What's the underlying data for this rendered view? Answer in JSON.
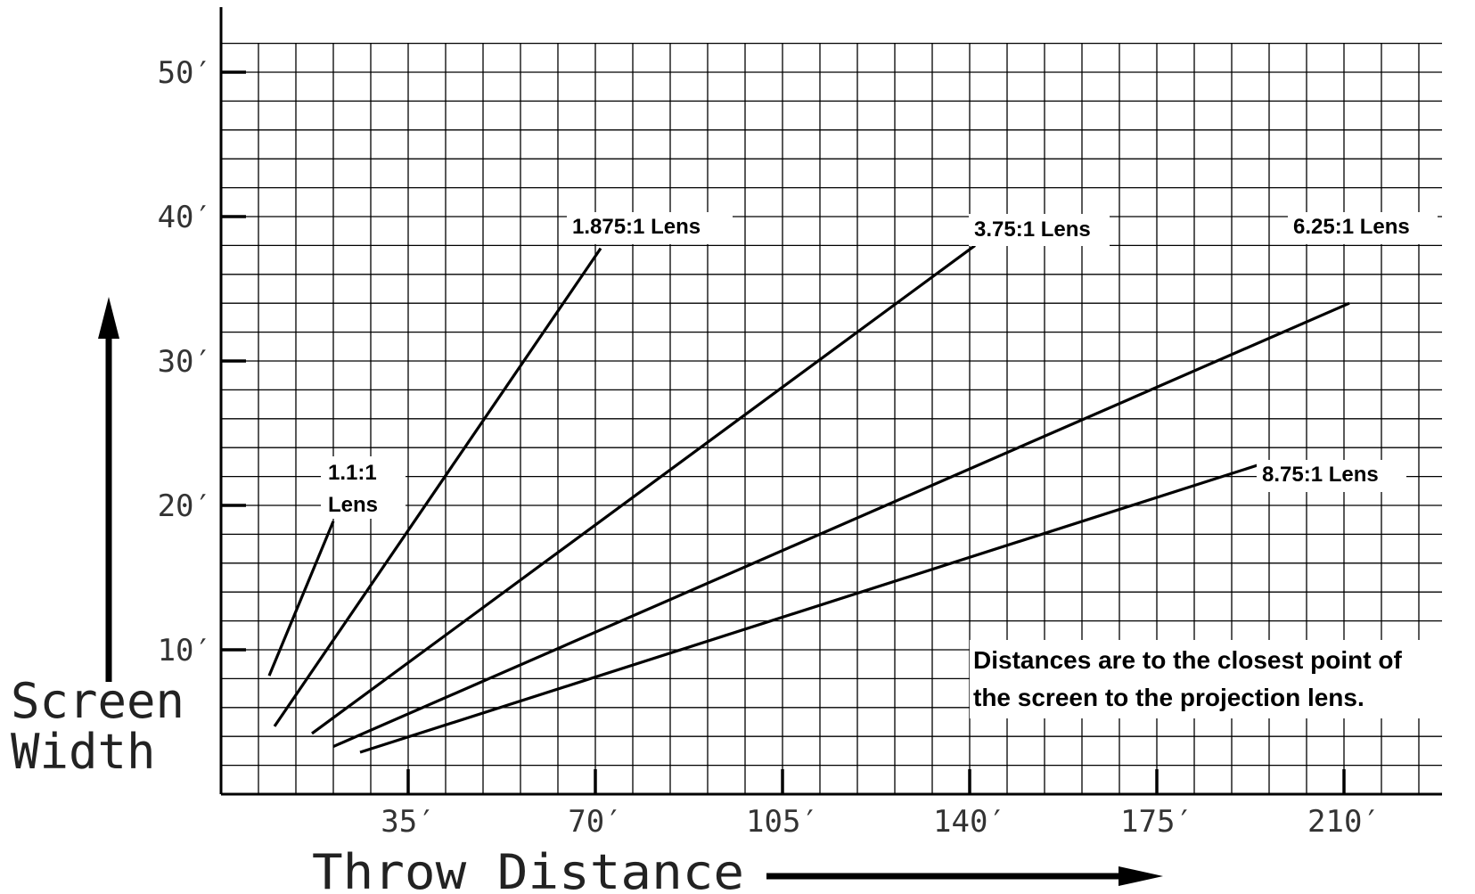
{
  "chart_data": {
    "type": "line",
    "xlabel": "Throw Distance",
    "ylabel_line1": "Screen",
    "ylabel_line2": "Width",
    "xlim": [
      0,
      230
    ],
    "ylim": [
      0,
      52
    ],
    "x_unit": "ft",
    "y_unit": "ft",
    "x_ticks": [
      35,
      70,
      105,
      140,
      175,
      210
    ],
    "x_tick_labels": [
      "35′",
      "70′",
      "105′",
      "140′",
      "175′",
      "210′"
    ],
    "y_ticks": [
      10,
      20,
      30,
      40,
      50
    ],
    "y_tick_labels": [
      "10′",
      "20′",
      "30′",
      "40′",
      "50′"
    ],
    "grid": true,
    "x_minor_step": 7,
    "y_minor_step": 2,
    "series": [
      {
        "name": "1.1:1 Lens",
        "label_lines": [
          "1.1:1",
          "Lens"
        ],
        "points": [
          [
            9,
            8.2
          ],
          [
            21,
            18.9
          ]
        ]
      },
      {
        "name": "1.875:1 Lens",
        "label_lines": [
          "1.875:1 Lens"
        ],
        "points": [
          [
            10,
            4.7
          ],
          [
            71,
            37.8
          ]
        ]
      },
      {
        "name": "3.75:1 Lens",
        "label_lines": [
          "3.75:1 Lens"
        ],
        "points": [
          [
            17,
            4.2
          ],
          [
            141,
            38.0
          ]
        ]
      },
      {
        "name": "6.25:1 Lens",
        "label_lines": [
          "6.25:1 Lens"
        ],
        "points": [
          [
            21,
            3.3
          ],
          [
            211,
            34.0
          ]
        ]
      },
      {
        "name": "8.75:1 Lens",
        "label_lines": [
          "8.75:1 Lens"
        ],
        "points": [
          [
            26,
            2.9
          ],
          [
            194,
            22.8
          ]
        ]
      }
    ],
    "annotation_lines": [
      "Distances are to the closest point of",
      "the screen to the projection lens."
    ]
  }
}
